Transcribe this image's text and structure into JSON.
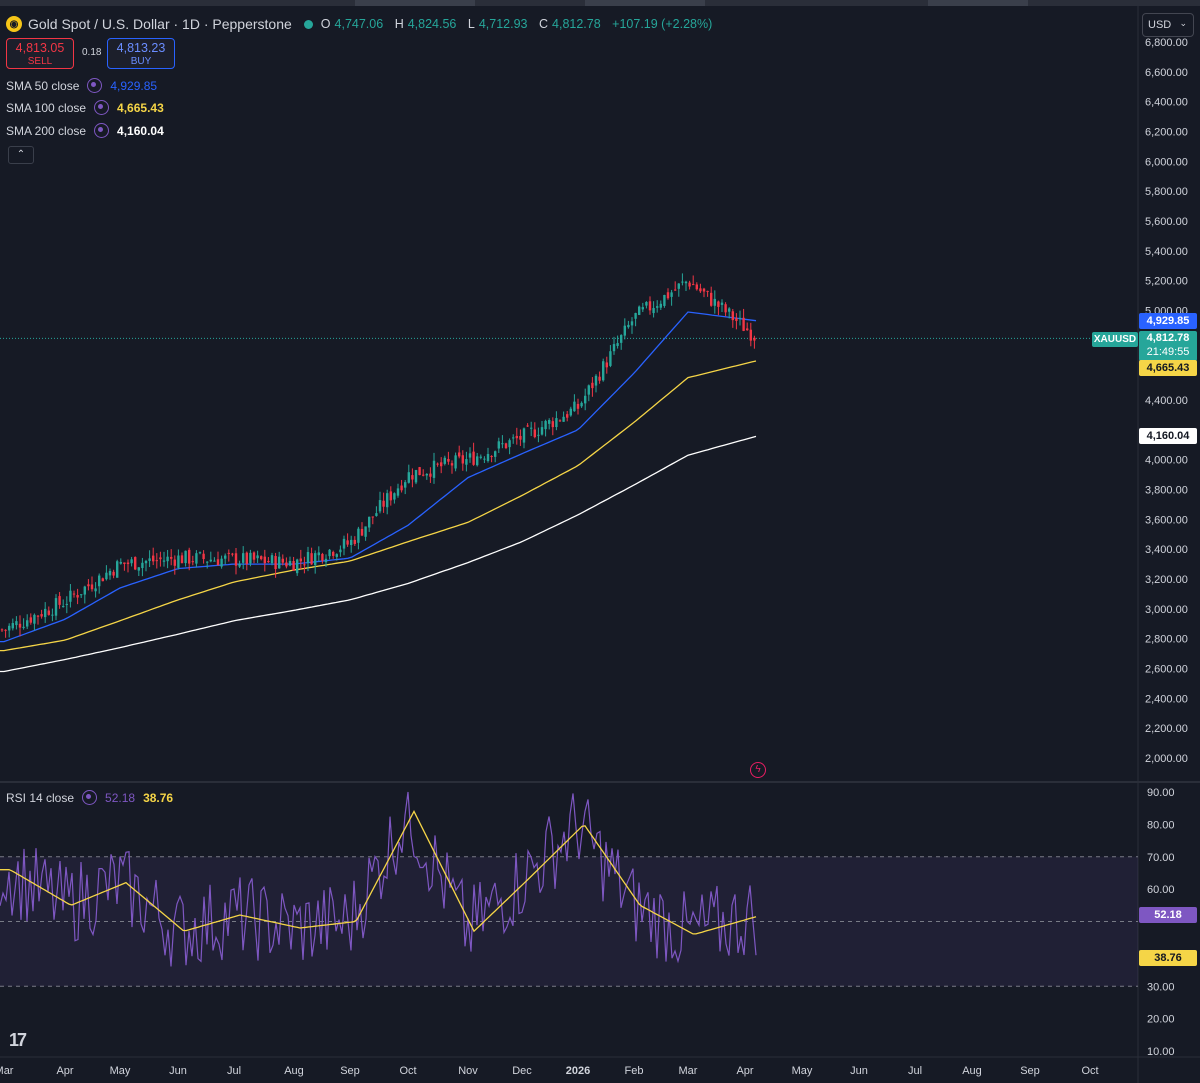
{
  "symbol": {
    "title": "Gold Spot / U.S. Dollar · 1D · Pepperstone",
    "logo_icon": "gold-coin-icon",
    "market_status_color": "#26a69a",
    "ohlc": {
      "o_label": "O",
      "o_value": "4,747.06",
      "h_label": "H",
      "h_value": "4,824.56",
      "l_label": "L",
      "l_value": "4,712.93",
      "c_label": "C",
      "c_value": "4,812.78",
      "change": "+107.19 (+2.28%)"
    }
  },
  "trade": {
    "sell_price": "4,813.05",
    "sell_label": "SELL",
    "spread": "0.18",
    "buy_price": "4,813.23",
    "buy_label": "BUY"
  },
  "indicators": [
    {
      "label": "SMA 50 close",
      "value": "4,929.85",
      "color": "#2962ff"
    },
    {
      "label": "SMA 100 close",
      "value": "4,665.43",
      "color": "#f5d547"
    },
    {
      "label": "SMA 200 close",
      "value": "4,160.04",
      "color": "#ffffff"
    }
  ],
  "collapse_icon": "chevron-up-icon",
  "currency_select": {
    "value": "USD",
    "icon": "chevron-down-icon"
  },
  "price_axis": {
    "labels": [
      "6,800.00",
      "6,600.00",
      "6,400.00",
      "6,200.00",
      "6,000.00",
      "5,800.00",
      "5,600.00",
      "5,400.00",
      "5,200.00",
      "5,000.00",
      "4,400.00",
      "4,000.00",
      "3,800.00",
      "3,600.00",
      "3,400.00",
      "3,200.00",
      "3,000.00",
      "2,800.00",
      "2,600.00",
      "2,400.00",
      "2,200.00",
      "2,000.00"
    ],
    "ticker_tag": "XAUUSD",
    "last_price": "4,812.78",
    "countdown": "21:49:55",
    "sma50_tag": "4,929.85",
    "sma100_tag": "4,665.43",
    "sma200_tag": "4,160.04"
  },
  "rsi": {
    "label": "RSI 14 close",
    "rsi_value": "52.18",
    "ma_value": "38.76",
    "rsi_color": "#7e57c2",
    "ma_color": "#f5d547",
    "axis_labels": [
      "90.00",
      "80.00",
      "70.00",
      "60.00",
      "30.00",
      "20.00",
      "10.00"
    ],
    "band_upper": 70,
    "band_lower": 30,
    "mid_level": 50
  },
  "time_axis": [
    "Mar",
    "Apr",
    "May",
    "Jun",
    "Jul",
    "Aug",
    "Sep",
    "Oct",
    "Nov",
    "Dec",
    "2026",
    "Feb",
    "Mar",
    "Apr",
    "May",
    "Jun",
    "Jul",
    "Aug",
    "Sep",
    "Oct"
  ],
  "alert_icon": "lightning-alert-icon",
  "brand": "17",
  "chart_data": {
    "type": "candlestick",
    "series": [
      {
        "name": "SMA 50 close",
        "x": [
          "Mar",
          "Apr",
          "May",
          "Jun",
          "Jul",
          "Aug",
          "Sep",
          "Oct",
          "Nov",
          "Dec",
          "2026",
          "Feb",
          "Mar",
          "Apr"
        ],
        "values": [
          2780,
          2930,
          3140,
          3270,
          3300,
          3300,
          3340,
          3560,
          3880,
          4040,
          4200,
          4580,
          4990,
          4930
        ]
      },
      {
        "name": "SMA 100 close",
        "x": [
          "Mar",
          "Apr",
          "May",
          "Jun",
          "Jul",
          "Aug",
          "Sep",
          "Oct",
          "Nov",
          "Dec",
          "2026",
          "Feb",
          "Mar",
          "Apr"
        ],
        "values": [
          2720,
          2790,
          2920,
          3060,
          3180,
          3260,
          3320,
          3450,
          3580,
          3760,
          3960,
          4250,
          4550,
          4665
        ]
      },
      {
        "name": "SMA 200 close",
        "x": [
          "Mar",
          "Apr",
          "May",
          "Jun",
          "Jul",
          "Aug",
          "Sep",
          "Oct",
          "Nov",
          "Dec",
          "2026",
          "Feb",
          "Mar",
          "Apr"
        ],
        "values": [
          2580,
          2660,
          2740,
          2830,
          2920,
          2990,
          3060,
          3170,
          3310,
          3450,
          3630,
          3830,
          4030,
          4160
        ]
      },
      {
        "name": "XAUUSD",
        "x": [
          "Mar",
          "Apr",
          "May",
          "Jun",
          "Jul",
          "Aug",
          "Sep",
          "Oct",
          "Nov",
          "Dec",
          "2026",
          "Feb",
          "Mar",
          "Apr"
        ],
        "values": [
          2860,
          3050,
          3300,
          3340,
          3330,
          3310,
          3440,
          3900,
          4000,
          4150,
          4350,
          4950,
          5200,
          4812.78
        ]
      },
      {
        "name": "RSI 14 close",
        "x": [
          "Mar",
          "Apr",
          "May",
          "Jun",
          "Jul",
          "Aug",
          "Sep",
          "Oct",
          "Nov",
          "Dec",
          "2026",
          "Feb",
          "Mar",
          "Apr"
        ],
        "values": [
          66,
          55,
          62,
          47,
          52,
          48,
          50,
          84,
          47,
          63,
          80,
          55,
          46,
          52.18
        ]
      }
    ],
    "ylim": [
      2000,
      6800
    ],
    "rsi_ylim": [
      10,
      90
    ],
    "grid": false,
    "legend": "top-left"
  }
}
